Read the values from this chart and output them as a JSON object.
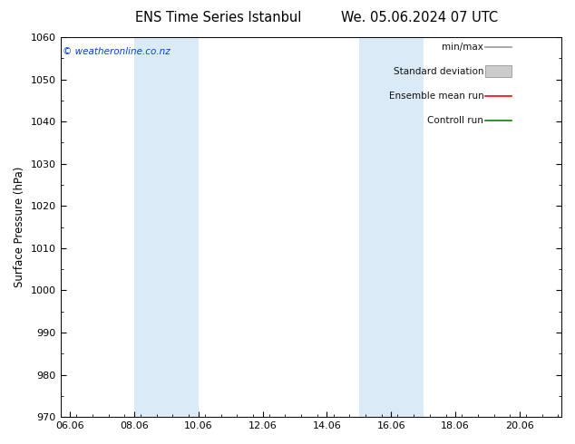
{
  "title_left": "ENS Time Series Istanbul",
  "title_right": "We. 05.06.2024 07 UTC",
  "ylabel": "Surface Pressure (hPa)",
  "ylim": [
    970,
    1060
  ],
  "yticks": [
    970,
    980,
    990,
    1000,
    1010,
    1020,
    1030,
    1040,
    1050,
    1060
  ],
  "xtick_labels": [
    "06.06",
    "08.06",
    "10.06",
    "12.06",
    "14.06",
    "16.06",
    "18.06",
    "20.06"
  ],
  "xtick_positions": [
    0,
    2,
    4,
    6,
    8,
    10,
    12,
    14
  ],
  "xlim": [
    -0.3,
    15.3
  ],
  "shade_bands": [
    {
      "start": 2,
      "end": 4
    },
    {
      "start": 9,
      "end": 11
    }
  ],
  "shade_color": "#daeaf7",
  "watermark": "© weatheronline.co.nz",
  "legend_items": [
    {
      "label": "min/max",
      "color": "#999999",
      "type": "line"
    },
    {
      "label": "Standard deviation",
      "color": "#cccccc",
      "type": "box"
    },
    {
      "label": "Ensemble mean run",
      "color": "#ff0000",
      "type": "line"
    },
    {
      "label": "Controll run",
      "color": "#008800",
      "type": "line"
    }
  ],
  "bg_color": "#ffffff",
  "title_fontsize": 10.5,
  "axis_fontsize": 8.5,
  "tick_fontsize": 8,
  "legend_fontsize": 7.5
}
